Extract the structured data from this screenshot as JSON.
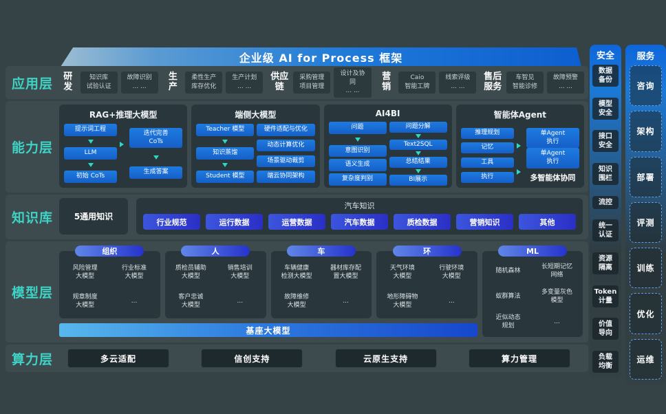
{
  "colors": {
    "accent_cyan": "#3ed3c5",
    "node_blue": "#1a6fd4",
    "pill_indigo": "#2f43cd",
    "banner_blue": "#1565c0",
    "background": "#354246"
  },
  "banner": {
    "title": "企业级 AI for Process 框架"
  },
  "app_layer": {
    "label": "应用层",
    "groups": [
      {
        "name": "研发",
        "cell1": "知识库\n试验认证",
        "cell2": "故障识别\n... ..."
      },
      {
        "name": "生产",
        "cell1": "柔性生产\n库存优化",
        "cell2": "生产计划\n... ..."
      },
      {
        "name": "供应链",
        "cell1": "采购管理\n项目管理",
        "cell2": "设计及协同\n... ..."
      },
      {
        "name": "营销",
        "cell1": "Caio\n智能工牌",
        "cell2": "线索评级\n... ..."
      },
      {
        "name": "售后服务",
        "cell1": "车智见\n智能诊修",
        "cell2": "故障预警\n... ..."
      }
    ]
  },
  "capability_layer": {
    "label": "能力层",
    "rag": {
      "title": "RAG+推理大模型",
      "n1": "提示词工程",
      "n2": "LLM",
      "n3": "初始 CoTs",
      "n4": "迭代完善\nCoTs",
      "n5": "生成答案"
    },
    "edge": {
      "title": "端侧大模型",
      "n1": "Teacher 模型",
      "n2": "知识蒸馏",
      "n3": "Student 模型",
      "r1": "硬件适配与优化",
      "r2": "动态计算优化",
      "r3": "场景驱动裁剪",
      "r4": "端云协同架构"
    },
    "ai4bi": {
      "title": "AI4BI",
      "l1": "问题",
      "l2": "意图识别",
      "l3": "语义生成",
      "l4": "复杂度判别",
      "r1": "问题分解",
      "r2": "Text2SQL",
      "r3": "总结结果",
      "r4": "BI展示"
    },
    "agent": {
      "title": "智能体Agent",
      "l1": "推理规划",
      "l2": "记忆",
      "l3": "工具",
      "l4": "执行",
      "r1": "单Agent\n执行",
      "r2": "单Agent\n执行",
      "caption": "多智能体协同"
    }
  },
  "knowledge_layer": {
    "label": "知识库",
    "general": "5通用知识",
    "auto_title": "汽车知识",
    "pills": [
      "行业规范",
      "运行数据",
      "运营数据",
      "汽车数据",
      "质检数据",
      "营销知识",
      "其他"
    ]
  },
  "model_layer": {
    "label": "模型层",
    "columns": [
      {
        "header": "组织",
        "items": [
          "风险管理\n大模型",
          "行业标准\n大模型",
          "规章制度\n大模型",
          "..."
        ]
      },
      {
        "header": "人",
        "items": [
          "质检员辅助\n大模型",
          "销售培训\n大模型",
          "客户忠诚\n大模型",
          "..."
        ]
      },
      {
        "header": "车",
        "items": [
          "车辆健康\n检测大模型",
          "器材库存配\n置大模型",
          "故障维修\n大模型",
          "..."
        ]
      },
      {
        "header": "环",
        "items": [
          "天气环境\n大模型",
          "行驶环境\n大模型",
          "地形障碍物\n大模型",
          "..."
        ]
      },
      {
        "header": "ML",
        "items": [
          "随机森林",
          "长短期记忆\n网络",
          "蚁群算法",
          "多变量灰色\n模型",
          "近似动态\n规划",
          "..."
        ]
      }
    ],
    "foundation": "基座大模型"
  },
  "compute_layer": {
    "label": "算力层",
    "items": [
      "多云适配",
      "信创支持",
      "云原生支持",
      "算力管理"
    ]
  },
  "security_panel": {
    "header": "安全",
    "items": [
      "数据\n备份",
      "模型\n安全",
      "接口\n安全",
      "知识\n围栏",
      "流控",
      "统一\n认证",
      "资源\n隔离",
      "Token\n计量",
      "价值\n导向",
      "负载\n均衡"
    ]
  },
  "service_panel": {
    "header": "服务",
    "items": [
      "咨询",
      "架构",
      "部署",
      "评测",
      "训练",
      "优化",
      "运维"
    ]
  }
}
